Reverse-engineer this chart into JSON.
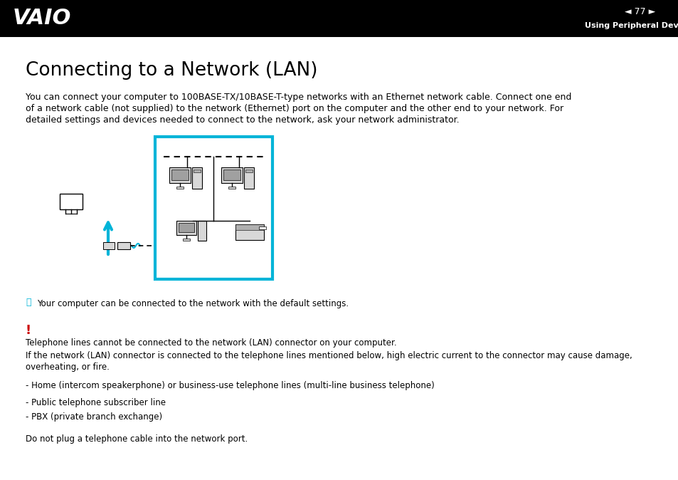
{
  "bg_color": "#ffffff",
  "header_bg": "#000000",
  "page_num": "77",
  "header_right_text": "Using Peripheral Devices",
  "title": "Connecting to a Network (LAN)",
  "body_line1": "You can connect your computer to 100BASE-TX/10BASE-T-type networks with an Ethernet network cable. Connect one end",
  "body_line2": "of a network cable (not supplied) to the network (Ethernet) port on the computer and the other end to your network. For",
  "body_line3": "detailed settings and devices needed to connect to the network, ask your network administrator.",
  "note_text": "Your computer can be connected to the network with the default settings.",
  "warning_text_1": "Telephone lines cannot be connected to the network (LAN) connector on your computer.",
  "warning_text_2a": "If the network (LAN) connector is connected to the telephone lines mentioned below, high electric current to the connector may cause damage,",
  "warning_text_2b": "overheating, or fire.",
  "bullet1": "- Home (intercom speakerphone) or business-use telephone lines (multi-line business telephone)",
  "bullet2": "- Public telephone subscriber line",
  "bullet3": "- PBX (private branch exchange)",
  "footer_text": "Do not plug a telephone cable into the network port.",
  "cyan_color": "#00b4d8",
  "red_color": "#cc0000",
  "text_color": "#000000",
  "gray_color": "#aaaaaa"
}
